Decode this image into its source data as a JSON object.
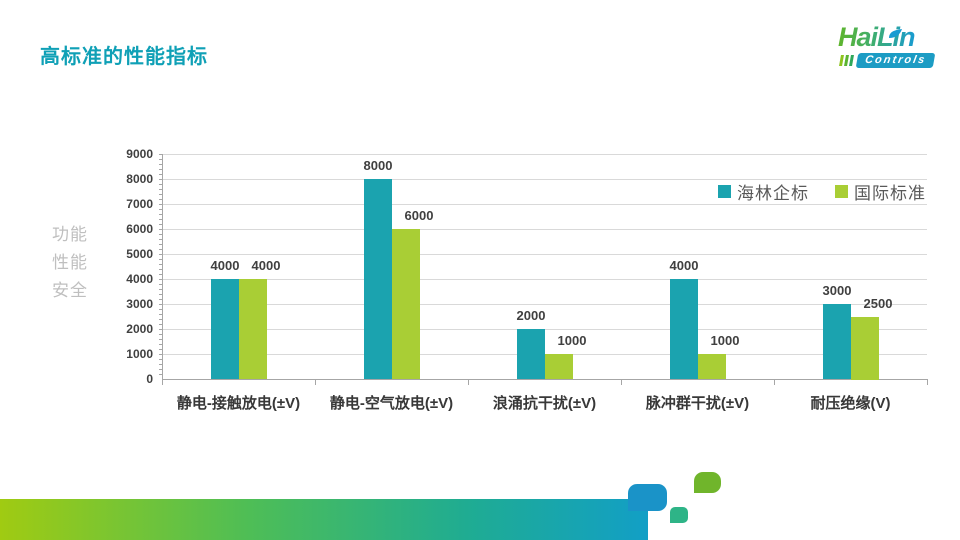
{
  "slide": {
    "title": "高标准的性能指标"
  },
  "logo": {
    "name": "HaiLin",
    "sub": "Controls"
  },
  "axis_title_lines": [
    "功能",
    "性能",
    "安全"
  ],
  "chart_data": {
    "type": "bar",
    "title": "",
    "categories": [
      "静电-接触放电(±V)",
      "静电-空气放电(±V)",
      "浪涌抗干扰(±V)",
      "脉冲群干扰(±V)",
      "耐压绝缘(V)"
    ],
    "series": [
      {
        "name": "海林企标",
        "color": "#1BA3AF",
        "values": [
          4000,
          8000,
          2000,
          4000,
          3000
        ]
      },
      {
        "name": "国际标准",
        "color": "#A9CE35",
        "values": [
          4000,
          6000,
          1000,
          1000,
          2500
        ]
      }
    ],
    "ylim": [
      0,
      9000
    ],
    "ytick_step": 1000,
    "grid": true,
    "legend_position": "top-right",
    "value_labels": true
  },
  "colors": {
    "title": "#0FA0B6",
    "grid": "#D9D9D9",
    "axis": "#A6A6A6",
    "tick_label": "#404040",
    "category_label": "#383838",
    "legend_text": "#595959",
    "side_label": "#BFBFBF",
    "deco_blue": "#1A93C8",
    "deco_teal": "#2EB487",
    "deco_green": "#70B52B",
    "deco_gradient_left": "#A0CB12",
    "deco_gradient_right": "#129FC6"
  }
}
